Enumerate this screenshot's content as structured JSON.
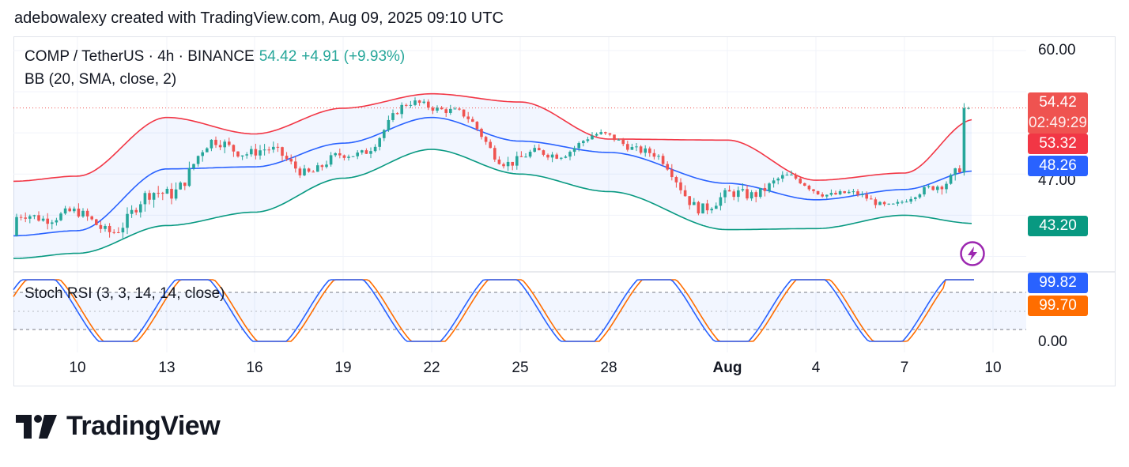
{
  "attribution": "adebowalexy created with TradingView.com, Aug 09, 2025 09:10 UTC",
  "legend": {
    "symbol": "COMP / TetherUS · 4h · BINANCE",
    "price": "54.42",
    "change": "+4.91 (+9.93%)",
    "bb": "BB (20, SMA, close, 2)",
    "stoch": "Stoch RSI (3, 3, 14, 14, close)"
  },
  "y_labels": [
    "60.00",
    "47.00"
  ],
  "rsi_labels": [
    "0.00"
  ],
  "x_labels": [
    "10",
    "13",
    "16",
    "19",
    "22",
    "25",
    "28",
    "Aug",
    "4",
    "7",
    "10"
  ],
  "tags": {
    "last": "54.42",
    "countdown": "02:49:29",
    "bb_upper": "53.32",
    "bb_basis": "48.26",
    "bb_lower": "43.20",
    "stoch_k": "99.82",
    "stoch_d": "99.70"
  },
  "colors": {
    "up": "#26a69a",
    "down": "#ef5350",
    "bb_upper": "#f23645",
    "bb_basis": "#2962ff",
    "bb_lower": "#089981",
    "stoch_k": "#2962ff",
    "stoch_d": "#ff6d00"
  },
  "logo": "TradingView",
  "chart_data": {
    "type": "line",
    "title": "COMP / TetherUS · 4h · BINANCE",
    "x": [
      "10",
      "13",
      "16",
      "19",
      "22",
      "25",
      "28",
      "Aug",
      "4",
      "7",
      "10"
    ],
    "series": [
      {
        "name": "BB upper",
        "values": [
          47.8,
          53.5,
          51.9,
          54.4,
          55.8,
          55.0,
          51.4,
          51.3,
          47.4,
          48.1,
          53.3
        ]
      },
      {
        "name": "BB basis",
        "values": [
          42.5,
          48.5,
          48.7,
          51.0,
          53.5,
          51.2,
          50.1,
          47.1,
          45.5,
          46.5,
          48.3
        ]
      },
      {
        "name": "BB lower",
        "values": [
          40.3,
          43.0,
          44.3,
          47.6,
          50.4,
          48.0,
          46.3,
          42.6,
          42.7,
          44.0,
          43.2
        ]
      }
    ],
    "last_price": 54.42,
    "ylim": [
      38.5,
      60.0
    ],
    "stoch_rsi": {
      "k": 99.82,
      "d": 99.7,
      "ylim": [
        0,
        100
      ]
    }
  }
}
